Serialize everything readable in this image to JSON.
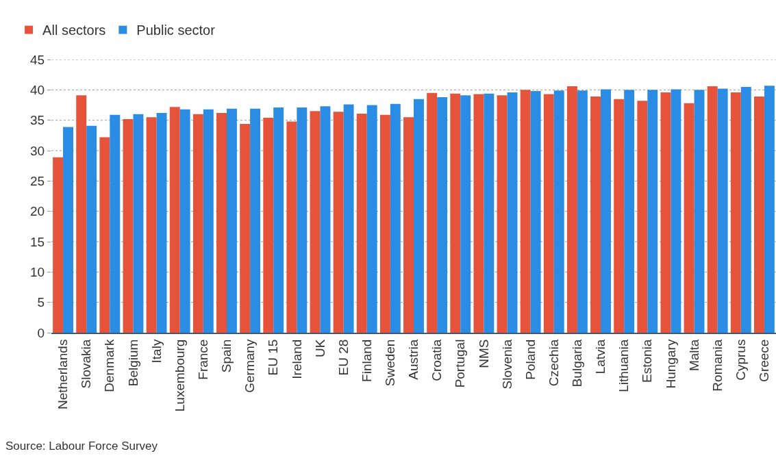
{
  "chart_data": {
    "type": "bar",
    "categories": [
      "Netherlands",
      "Slovakia",
      "Denmark",
      "Belgium",
      "Italy",
      "Luxembourg",
      "France",
      "Spain",
      "Germany",
      "EU 15",
      "Ireland",
      "UK",
      "EU 28",
      "Finland",
      "Sweden",
      "Austria",
      "Croatia",
      "Portugal",
      "NMS",
      "Slovenia",
      "Poland",
      "Czechia",
      "Bulgaria",
      "Latvia",
      "Lithuania",
      "Estonia",
      "Hungary",
      "Malta",
      "Romania",
      "Cyprus",
      "Greece"
    ],
    "series": [
      {
        "name": "All sectors",
        "color": "#e5533b",
        "values": [
          28.9,
          39.1,
          32.2,
          35.2,
          35.5,
          37.2,
          36.0,
          36.2,
          34.4,
          35.4,
          34.8,
          36.5,
          36.4,
          36.1,
          35.9,
          35.5,
          39.5,
          39.4,
          39.3,
          39.1,
          40.0,
          39.3,
          40.6,
          38.9,
          38.5,
          38.2,
          39.6,
          37.8,
          40.6,
          39.6,
          38.9
        ]
      },
      {
        "name": "Public sector",
        "color": "#2b8ce3",
        "values": [
          33.9,
          34.1,
          35.9,
          36.0,
          36.2,
          36.8,
          36.8,
          36.9,
          36.9,
          37.1,
          37.1,
          37.3,
          37.6,
          37.5,
          37.7,
          38.5,
          38.8,
          39.1,
          39.4,
          39.6,
          39.8,
          39.9,
          39.9,
          40.1,
          40.0,
          40.0,
          40.1,
          40.0,
          40.2,
          40.5,
          40.7
        ]
      }
    ],
    "ylim": [
      0,
      45
    ],
    "yticks": [
      0,
      5,
      10,
      15,
      20,
      25,
      30,
      35,
      40,
      45
    ],
    "grid": "y",
    "legend": "top left",
    "annotations": [
      "Source: Labour Force Survey"
    ]
  }
}
